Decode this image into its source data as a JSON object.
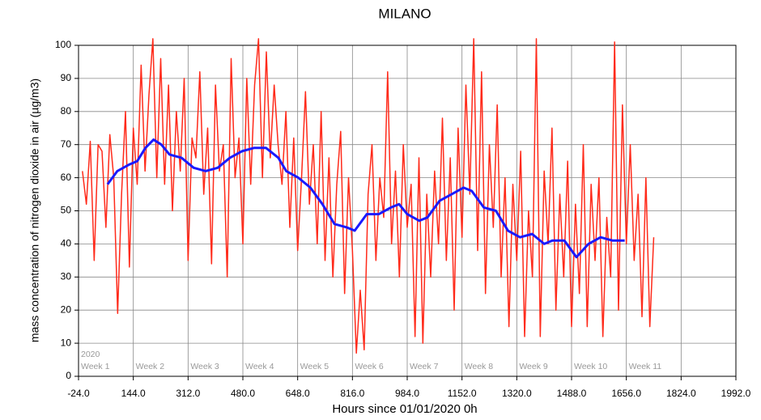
{
  "chart_data": {
    "type": "line",
    "title": "MILANO",
    "x_label": "Hours since 01/01/2020  0h",
    "y_label": "mass concentration of nitrogen dioxide in air (µg/m3)",
    "xlim": [
      -24,
      1992
    ],
    "ylim": [
      0,
      100
    ],
    "xticks": [
      {
        "value": -24,
        "label": "-24.0"
      },
      {
        "value": 144,
        "label": "144.0"
      },
      {
        "value": 312,
        "label": "312.0"
      },
      {
        "value": 480,
        "label": "480.0"
      },
      {
        "value": 648,
        "label": "648.0"
      },
      {
        "value": 816,
        "label": "816.0"
      },
      {
        "value": 984,
        "label": "984.0"
      },
      {
        "value": 1152,
        "label": "1152.0"
      },
      {
        "value": 1320,
        "label": "1320.0"
      },
      {
        "value": 1488,
        "label": "1488.0"
      },
      {
        "value": 1656,
        "label": "1656.0"
      },
      {
        "value": 1824,
        "label": "1824.0"
      },
      {
        "value": 1992,
        "label": "1992.0"
      }
    ],
    "yticks": [
      0,
      10,
      20,
      30,
      40,
      50,
      60,
      70,
      80,
      90,
      100
    ],
    "grid": true,
    "annotations": [
      {
        "text": "2020",
        "x": -24
      }
    ],
    "week_labels": [
      {
        "label": "Week 1",
        "x": -24
      },
      {
        "label": "Week 2",
        "x": 144
      },
      {
        "label": "Week 3",
        "x": 312
      },
      {
        "label": "Week 4",
        "x": 480
      },
      {
        "label": "Week 5",
        "x": 648
      },
      {
        "label": "Week 6",
        "x": 816
      },
      {
        "label": "Week 7",
        "x": 984
      },
      {
        "label": "Week 8",
        "x": 1152
      },
      {
        "label": "Week 9",
        "x": 1320
      },
      {
        "label": "Week 10",
        "x": 1488
      },
      {
        "label": "Week 11",
        "x": 1656
      }
    ],
    "series": [
      {
        "color": "#ff2a1a",
        "width": 1.5,
        "x": [
          -12,
          0,
          12,
          24,
          36,
          48,
          60,
          72,
          84,
          96,
          108,
          120,
          132,
          144,
          156,
          168,
          180,
          192,
          204,
          216,
          228,
          240,
          252,
          264,
          276,
          288,
          300,
          312,
          324,
          336,
          348,
          360,
          372,
          384,
          396,
          408,
          420,
          432,
          444,
          456,
          468,
          480,
          492,
          504,
          516,
          528,
          540,
          552,
          564,
          576,
          588,
          600,
          612,
          624,
          636,
          648,
          660,
          672,
          684,
          696,
          708,
          720,
          732,
          744,
          756,
          768,
          780,
          792,
          804,
          816,
          828,
          840,
          852,
          864,
          876,
          888,
          900,
          912,
          924,
          936,
          948,
          960,
          972,
          984,
          996,
          1008,
          1020,
          1032,
          1044,
          1056,
          1068,
          1080,
          1092,
          1104,
          1116,
          1128,
          1140,
          1152,
          1164,
          1176,
          1188,
          1200,
          1212,
          1224,
          1236,
          1248,
          1260,
          1272,
          1284,
          1296,
          1308,
          1320,
          1332,
          1344,
          1356,
          1368,
          1380,
          1392,
          1404,
          1416,
          1428,
          1440,
          1452,
          1464,
          1476,
          1488,
          1500,
          1512,
          1524,
          1536,
          1548,
          1560,
          1572,
          1584,
          1596,
          1608,
          1620,
          1632,
          1644,
          1656,
          1668,
          1680,
          1692,
          1704,
          1716,
          1728,
          1740
        ],
        "values": [
          62,
          52,
          71,
          35,
          70,
          68,
          45,
          73,
          60,
          19,
          55,
          80,
          33,
          75,
          58,
          94,
          62,
          85,
          102,
          60,
          96,
          58,
          88,
          50,
          80,
          62,
          90,
          35,
          72,
          66,
          92,
          55,
          75,
          34,
          88,
          62,
          70,
          30,
          96,
          60,
          72,
          40,
          90,
          58,
          88,
          102,
          60,
          98,
          66,
          88,
          70,
          58,
          80,
          45,
          72,
          38,
          60,
          86,
          52,
          70,
          40,
          80,
          35,
          66,
          30,
          58,
          74,
          25,
          60,
          38,
          7,
          26,
          8,
          55,
          70,
          35,
          60,
          48,
          92,
          40,
          62,
          30,
          70,
          45,
          58,
          12,
          66,
          10,
          55,
          30,
          62,
          40,
          78,
          35,
          66,
          20,
          75,
          42,
          88,
          55,
          102,
          38,
          92,
          25,
          70,
          45,
          82,
          30,
          60,
          15,
          58,
          35,
          68,
          12,
          50,
          30,
          102,
          12,
          62,
          40,
          75,
          20,
          55,
          30,
          65,
          15,
          52,
          25,
          70,
          15,
          58,
          35,
          60,
          12,
          48,
          30,
          101,
          20,
          82,
          40,
          70,
          35,
          55,
          18,
          60,
          15,
          42
        ]
      },
      {
        "color": "#1a1aff",
        "width": 3,
        "x": [
          65,
          95,
          132,
          156,
          181,
          206,
          230,
          255,
          292,
          329,
          366,
          403,
          440,
          477,
          514,
          551,
          589,
          613,
          650,
          687,
          724,
          761,
          798,
          823,
          860,
          897,
          934,
          959,
          984,
          1021,
          1046,
          1083,
          1120,
          1157,
          1182,
          1219,
          1256,
          1293,
          1330,
          1367,
          1404,
          1429,
          1466,
          1503,
          1540,
          1577,
          1614,
          1651
        ],
        "values": [
          58,
          62,
          64,
          65,
          69,
          71.5,
          70,
          67,
          66,
          63,
          62,
          63,
          66,
          68,
          69,
          69,
          66,
          62,
          60,
          57,
          52,
          46,
          45,
          44,
          49,
          49,
          51,
          52,
          49,
          47,
          48,
          53,
          55,
          57,
          56,
          51,
          50,
          44,
          42,
          43,
          40,
          41,
          41,
          36,
          40,
          42,
          41,
          41
        ]
      }
    ]
  }
}
